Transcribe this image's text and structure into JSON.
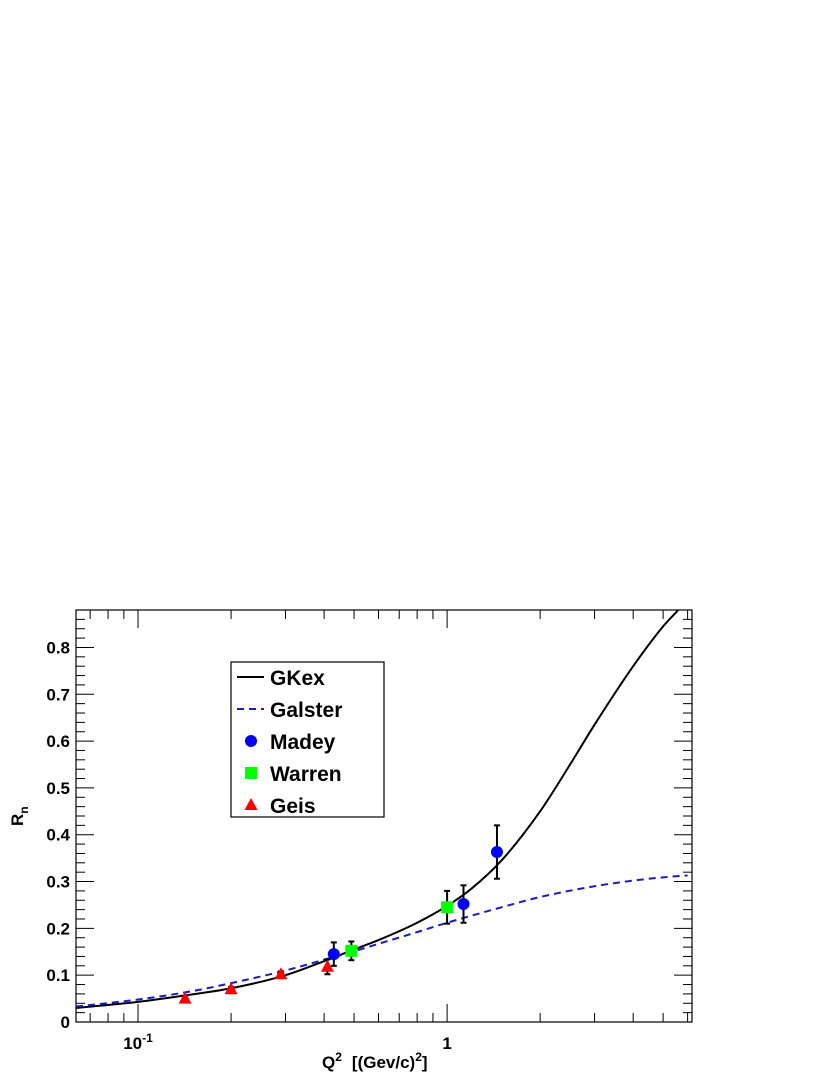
{
  "chart_data": {
    "type": "scatter",
    "title": "",
    "xlabel": "Q2 [(Gev/c)2]",
    "xlabel_parts": {
      "main": "Q",
      "sup1": "2",
      "mid": "[(Gev/c)",
      "sup2": "2",
      "end": "]"
    },
    "ylabel": "Rn",
    "ylabel_parts": {
      "main": "R",
      "sub": "n"
    },
    "xscale": "log",
    "xlim": [
      0.063,
      6.2
    ],
    "ylim": [
      0,
      0.88
    ],
    "grid": false,
    "legend_position": "upper-left",
    "x_tick_labels": [
      {
        "value": 0.1,
        "base": "10",
        "exp": "-1"
      },
      {
        "value": 1,
        "base": "1",
        "exp": ""
      }
    ],
    "y_ticks": [
      0,
      0.1,
      0.2,
      0.3,
      0.4,
      0.5,
      0.6,
      0.7,
      0.8
    ],
    "y_tick_labels": [
      "0",
      "0.1",
      "0.2",
      "0.3",
      "0.4",
      "0.5",
      "0.6",
      "0.7",
      "0.8"
    ],
    "series": [
      {
        "name": "GKex",
        "kind": "line",
        "style": "solid",
        "color": "#000000",
        "x": [
          0.063,
          0.1,
          0.15,
          0.2,
          0.3,
          0.4,
          0.5,
          0.6,
          0.8,
          1.0,
          1.2,
          1.5,
          2.0,
          2.5,
          3.0,
          4.0,
          5.0,
          5.6
        ],
        "y": [
          0.03,
          0.043,
          0.059,
          0.072,
          0.1,
          0.13,
          0.155,
          0.175,
          0.212,
          0.248,
          0.285,
          0.345,
          0.45,
          0.55,
          0.635,
          0.76,
          0.845,
          0.88
        ]
      },
      {
        "name": "Galster",
        "kind": "line",
        "style": "dashed",
        "color": "#1a1acc",
        "x": [
          0.063,
          0.1,
          0.15,
          0.2,
          0.3,
          0.4,
          0.5,
          0.6,
          0.8,
          1.0,
          1.5,
          2.0,
          3.0,
          4.0,
          5.0,
          6.0
        ],
        "y": [
          0.033,
          0.048,
          0.066,
          0.083,
          0.11,
          0.133,
          0.151,
          0.167,
          0.192,
          0.212,
          0.245,
          0.267,
          0.29,
          0.302,
          0.309,
          0.313
        ]
      },
      {
        "name": "Madey",
        "kind": "points",
        "marker": "circle",
        "color": "#0000ff",
        "x": [
          0.43,
          1.13,
          1.45
        ],
        "y": [
          0.145,
          0.252,
          0.363
        ],
        "err": [
          0.025,
          0.04,
          0.057
        ]
      },
      {
        "name": "Warren",
        "kind": "points",
        "marker": "square",
        "color": "#00ff00",
        "x": [
          0.49,
          1.0
        ],
        "y": [
          0.152,
          0.245
        ],
        "err": [
          0.02,
          0.035
        ]
      },
      {
        "name": "Geis",
        "kind": "points",
        "marker": "triangle",
        "color": "#ff0000",
        "x": [
          0.142,
          0.2,
          0.29,
          0.41
        ],
        "y": [
          0.05,
          0.07,
          0.102,
          0.118
        ],
        "err": [
          0.004,
          0.005,
          0.006,
          0.016
        ]
      }
    ]
  }
}
